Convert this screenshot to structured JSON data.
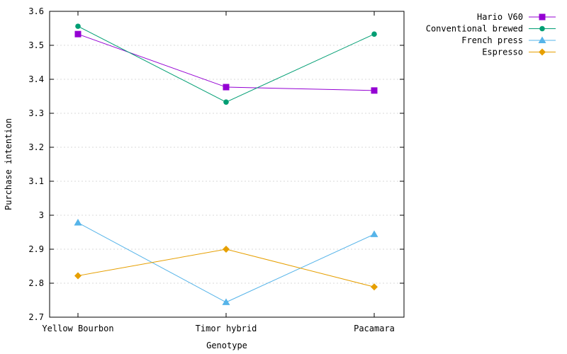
{
  "chart_data": {
    "type": "line",
    "categories": [
      "Yellow Bourbon",
      "Timor hybrid",
      "Pacamara"
    ],
    "xlabel": "Genotype",
    "ylabel": "Purchase intention",
    "ylim": [
      2.7,
      3.6
    ],
    "yticks": [
      "2.7",
      "2.8",
      "2.9",
      "3",
      "3.1",
      "3.2",
      "3.3",
      "3.4",
      "3.5",
      "3.6"
    ],
    "grid": true,
    "legend_position": "top-right outside plot",
    "series": [
      {
        "name": "Hario V60",
        "color": "#9400d3",
        "marker": "square",
        "values": [
          3.533,
          3.377,
          3.367
        ]
      },
      {
        "name": "Conventional brewed",
        "color": "#009e73",
        "marker": "circle",
        "values": [
          3.556,
          3.333,
          3.533
        ]
      },
      {
        "name": "French press",
        "color": "#56b4e9",
        "marker": "triangle",
        "values": [
          2.978,
          2.744,
          2.944
        ]
      },
      {
        "name": "Espresso",
        "color": "#e69f00",
        "marker": "diamond",
        "values": [
          2.822,
          2.9,
          2.789
        ]
      }
    ]
  }
}
